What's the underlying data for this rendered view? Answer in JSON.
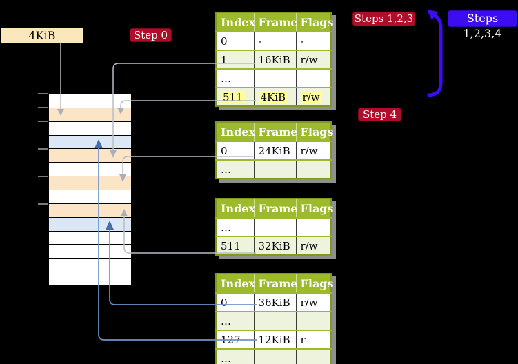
{
  "frame_label": "4KiB",
  "badges": {
    "step0": {
      "label": "Step 0"
    },
    "steps123": {
      "label": "Steps 1,2,3"
    },
    "steps1234": {
      "label": "Steps 1,2,3,4"
    },
    "step4": {
      "label": "Step 4"
    }
  },
  "page_tables": [
    {
      "id": "pt1",
      "columns": [
        "Index",
        "Frame",
        "Flags"
      ],
      "rows": [
        {
          "cells": [
            "0",
            "-",
            "-"
          ],
          "shade": "white",
          "highlight": false
        },
        {
          "cells": [
            "1",
            "16KiB",
            "r/w"
          ],
          "shade": "green",
          "highlight": false
        },
        {
          "cells": [
            "…",
            "",
            ""
          ],
          "shade": "white",
          "highlight": false
        },
        {
          "cells": [
            "511",
            "4KiB",
            "r/w"
          ],
          "shade": "green",
          "highlight": true
        }
      ]
    },
    {
      "id": "pt2",
      "columns": [
        "Index",
        "Frame",
        "Flags"
      ],
      "rows": [
        {
          "cells": [
            "0",
            "24KiB",
            "r/w"
          ],
          "shade": "white",
          "highlight": false
        },
        {
          "cells": [
            "…",
            "",
            ""
          ],
          "shade": "green",
          "highlight": false
        }
      ]
    },
    {
      "id": "pt3",
      "columns": [
        "Index",
        "Frame",
        "Flags"
      ],
      "rows": [
        {
          "cells": [
            "…",
            "",
            ""
          ],
          "shade": "white",
          "highlight": false
        },
        {
          "cells": [
            "511",
            "32KiB",
            "r/w"
          ],
          "shade": "green",
          "highlight": false
        }
      ]
    },
    {
      "id": "pt4",
      "columns": [
        "Index",
        "Frame",
        "Flags"
      ],
      "rows": [
        {
          "cells": [
            "0",
            "36KiB",
            "r/w"
          ],
          "shade": "white",
          "highlight": false
        },
        {
          "cells": [
            "…",
            "",
            ""
          ],
          "shade": "green",
          "highlight": false
        },
        {
          "cells": [
            "127",
            "12KiB",
            "r"
          ],
          "shade": "white",
          "highlight": false
        },
        {
          "cells": [
            "…",
            "",
            ""
          ],
          "shade": "green",
          "highlight": false
        }
      ]
    }
  ],
  "memory_column": {
    "frames": [
      "white",
      "peach",
      "white",
      "blue",
      "peach",
      "white",
      "peach",
      "white",
      "peach",
      "blue",
      "white",
      "white",
      "white",
      "white"
    ]
  },
  "colors": {
    "badge_red": "#b00d28",
    "badge_blue": "#3b0df0",
    "table_header_green": "#9cba2c",
    "table_row_green": "#eef3de",
    "frame_peach": "#fce4c6",
    "frame_blue": "#dbe7f5",
    "highlight_yellow": "#ffff99",
    "frame_label_wheat": "#fbe7bc"
  }
}
